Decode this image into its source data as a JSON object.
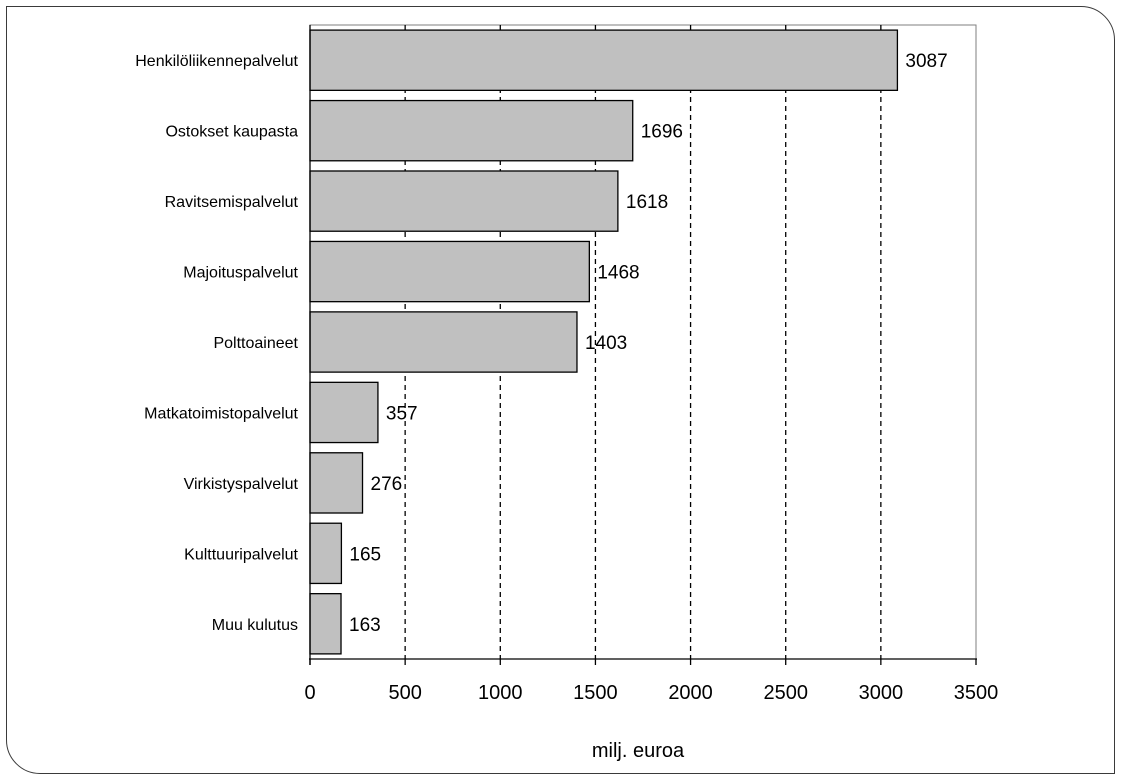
{
  "chart_data": {
    "type": "bar",
    "orientation": "horizontal",
    "categories": [
      "Henkilöliikennepalvelut",
      "Ostokset kaupasta",
      "Ravitsemispalvelut",
      "Majoituspalvelut",
      "Polttoaineet",
      "Matkatoimistopalvelut",
      "Virkistyspalvelut",
      "Kulttuuripalvelut",
      "Muu kulutus"
    ],
    "values": [
      3087,
      1696,
      1618,
      1468,
      1403,
      357,
      276,
      165,
      163
    ],
    "data_labels": [
      "3087",
      "1696",
      "1618",
      "1468",
      "1403",
      "357",
      "276",
      "165",
      "163"
    ],
    "title": "",
    "xlabel": "milj. euroa",
    "ylabel": "",
    "xlim": [
      0,
      3500
    ],
    "x_ticks": [
      0,
      500,
      1000,
      1500,
      2000,
      2500,
      3000,
      3500
    ],
    "x_tick_labels": [
      "0",
      "500",
      "1000",
      "1500",
      "2000",
      "2500",
      "3000",
      "3500"
    ],
    "grid": "vertical dashed",
    "legend": "none",
    "colors": {
      "bar_fill": "#c0c0c0",
      "bar_stroke": "#000000",
      "grid": "#000000",
      "axis": "#000000"
    }
  }
}
